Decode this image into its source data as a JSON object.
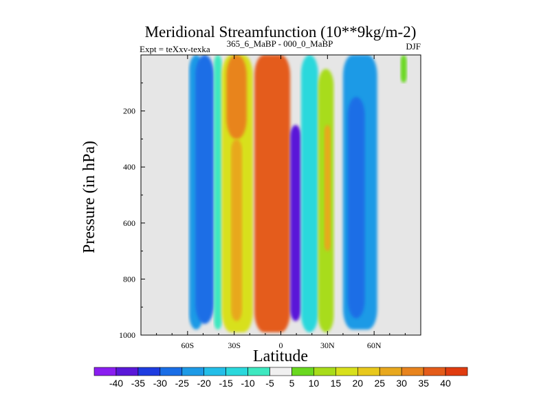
{
  "chart_data": {
    "type": "heatmap",
    "title": "Meridional Streamfunction (10**9kg/m-2)",
    "left_label": "Expt = teXxv-texka",
    "center_label": "365_6_MaBP - 000_0_MaBP",
    "right_label": "DJF",
    "xlabel": "Latitude",
    "ylabel": "Pressure (in hPa)",
    "xlim": [
      -90,
      90
    ],
    "ylim": [
      1000,
      0
    ],
    "x_ticks": [
      {
        "value": -60,
        "label": "60S"
      },
      {
        "value": -30,
        "label": "30S"
      },
      {
        "value": 0,
        "label": "0"
      },
      {
        "value": 30,
        "label": "30N"
      },
      {
        "value": 60,
        "label": "60N"
      }
    ],
    "y_ticks": [
      {
        "value": 200,
        "label": "200"
      },
      {
        "value": 400,
        "label": "400"
      },
      {
        "value": 600,
        "label": "600"
      },
      {
        "value": 800,
        "label": "800"
      },
      {
        "value": 1000,
        "label": "1000"
      }
    ],
    "missing_color": "#e6e6e6",
    "colorbar": {
      "levels": [
        "-40",
        "-35",
        "-30",
        "-25",
        "-20",
        "-15",
        "-10",
        "-5",
        "5",
        "10",
        "15",
        "20",
        "25",
        "30",
        "35",
        "40"
      ],
      "colors": [
        "#8a1ef0",
        "#5a18d8",
        "#1e3ce0",
        "#1a6ee6",
        "#1e9ae6",
        "#24bee8",
        "#2ad8dc",
        "#3ee8c0",
        "#f0f0f0",
        "#6ad820",
        "#a8dc1a",
        "#d8e01c",
        "#e8c81c",
        "#e8a81e",
        "#e8841e",
        "#e45c1a",
        "#e03c10"
      ]
    },
    "field_bands": [
      {
        "lat_start": -59,
        "lat_end": -50,
        "p_top": 0,
        "p_bottom": 980,
        "value": -22,
        "label": "SH mid-lat outer (cyan)"
      },
      {
        "lat_start": -55,
        "lat_end": -43,
        "p_top": 0,
        "p_bottom": 960,
        "value": -30,
        "label": "SH mid-lat cell core (blue)"
      },
      {
        "lat_start": -43,
        "lat_end": -38,
        "p_top": 0,
        "p_bottom": 980,
        "value": -8,
        "label": "SH cyan margin"
      },
      {
        "lat_start": -38,
        "lat_end": -18,
        "p_top": 0,
        "p_bottom": 990,
        "value": 15,
        "label": "SH subtropical (yellow-green)"
      },
      {
        "lat_start": -35,
        "lat_end": -22,
        "p_top": 0,
        "p_bottom": 300,
        "value": 30,
        "label": "SH upper orange"
      },
      {
        "lat_start": -32,
        "lat_end": -25,
        "p_top": 300,
        "p_bottom": 950,
        "value": 25,
        "label": "SH orange streak"
      },
      {
        "lat_start": -17,
        "lat_end": 6,
        "p_top": 0,
        "p_bottom": 990,
        "value": 38,
        "label": "Hadley cell (red)"
      },
      {
        "lat_start": 6,
        "lat_end": 13,
        "p_top": 250,
        "p_bottom": 950,
        "value": -38,
        "label": "NH tropical negative (purple)"
      },
      {
        "lat_start": 13,
        "lat_end": 24,
        "p_top": 0,
        "p_bottom": 990,
        "value": -12,
        "label": "NH tropical margin (cyan)"
      },
      {
        "lat_start": 24,
        "lat_end": 34,
        "p_top": 50,
        "p_bottom": 990,
        "value": 12,
        "label": "NH subtropical (green-yellow)"
      },
      {
        "lat_start": 28,
        "lat_end": 32,
        "p_top": 250,
        "p_bottom": 700,
        "value": 28,
        "label": "NH orange streak"
      },
      {
        "lat_start": 40,
        "lat_end": 62,
        "p_top": 0,
        "p_bottom": 980,
        "value": -22,
        "label": "NH mid-lat outer (cyan)"
      },
      {
        "lat_start": 43,
        "lat_end": 54,
        "p_top": 150,
        "p_bottom": 940,
        "value": -30,
        "label": "NH mid-lat core (blue)"
      },
      {
        "lat_start": 77,
        "lat_end": 81,
        "p_top": 0,
        "p_bottom": 100,
        "value": 8,
        "label": "NH polar (green)"
      }
    ]
  }
}
